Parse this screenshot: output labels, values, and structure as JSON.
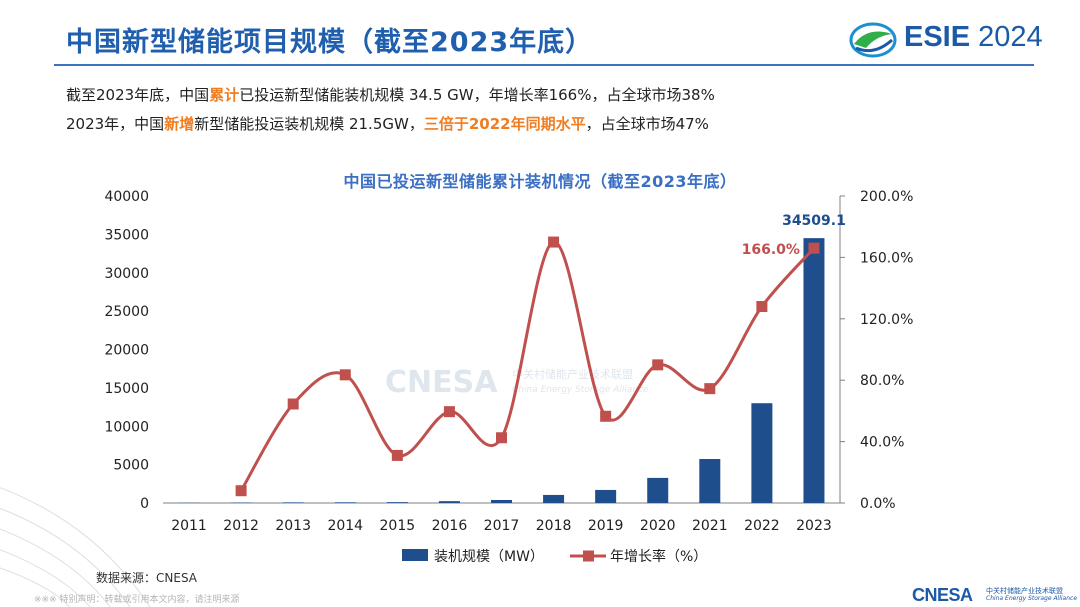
{
  "header": {
    "title": "中国新型储能项目规模（截至2023年底）",
    "logo_text_bold": "ESIE",
    "logo_text_year": " 2024"
  },
  "summary": {
    "line1": {
      "a": "截至2023年底，中国",
      "b": "累计",
      "c": "已投运新型储能装机规模 34.5 GW，年增长率166%，占全球市场38%"
    },
    "line2": {
      "a": "2023年，中国",
      "b": "新增",
      "c": "新型储能投运装机规模 21.5GW，",
      "d": "三倍于2022年同期水平",
      "e": "，占全球市场47%"
    }
  },
  "chart_data": {
    "type": "bar+line",
    "title": "中国已投运新型储能累计装机情况（截至2023年底）",
    "categories": [
      "2011",
      "2012",
      "2013",
      "2014",
      "2015",
      "2016",
      "2017",
      "2018",
      "2019",
      "2020",
      "2021",
      "2022",
      "2023"
    ],
    "series": [
      {
        "name": "装机规模（MW）",
        "type": "bar",
        "axis": "left",
        "color": "#1f4e8c",
        "values": [
          30,
          60,
          80,
          90,
          110,
          240,
          390,
          1050,
          1700,
          3270,
          5730,
          13000,
          34509.1
        ]
      },
      {
        "name": "年增长率（%）",
        "type": "line",
        "axis": "right",
        "color": "#c0504d",
        "values": [
          null,
          8,
          64.5,
          83.5,
          31,
          59.5,
          42.5,
          170,
          56.5,
          90,
          74.5,
          128,
          166
        ]
      }
    ],
    "y_left": {
      "min": 0,
      "max": 40000,
      "ticks": [
        "0",
        "5000",
        "10000",
        "15000",
        "20000",
        "25000",
        "30000",
        "35000",
        "40000"
      ]
    },
    "y_right": {
      "min": 0,
      "max": 200,
      "ticks": [
        "0.0%",
        "40.0%",
        "80.0%",
        "120.0%",
        "160.0%",
        "200.0%"
      ]
    },
    "annotations": {
      "bar_2023": "34509.1",
      "line_2023": "166.0%"
    },
    "legend_position": "bottom",
    "watermark": {
      "main": "CNESA",
      "cn": "中关村储能产业技术联盟",
      "en": "China Energy Storage Alliance"
    }
  },
  "source": "数据来源：CNESA",
  "disclaimer": "※※※ 特别声明：转载或引用本文内容，请注明来源",
  "footer_logo": {
    "main": "CNESA",
    "cn": "中关村储能产业技术联盟",
    "en": "China Energy Storage Alliance"
  },
  "colors": {
    "accent_blue": "#1f5fae",
    "bar_blue": "#1f4e8c",
    "line_red": "#c0504d",
    "highlight_orange": "#ef7d22"
  }
}
